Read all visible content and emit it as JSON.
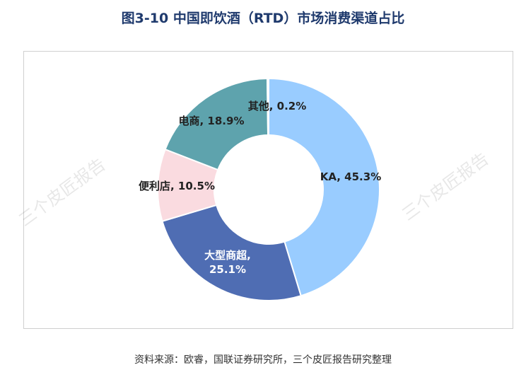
{
  "chart_data": {
    "type": "pie",
    "title": "图3-10  中国即饮酒（RTD）市场消费渠道占比",
    "slices": [
      {
        "name": "KA",
        "value": 45.3,
        "label": "KA, 45.3%",
        "color": "#99ccff"
      },
      {
        "name": "大型商超",
        "value": 25.1,
        "label_lines": [
          "大型商超,",
          "25.1%"
        ],
        "color": "#4f6db3"
      },
      {
        "name": "便利店",
        "value": 10.5,
        "label": "便利店, 10.5%",
        "color": "#fadbe0"
      },
      {
        "name": "电商",
        "value": 18.9,
        "label": "电商, 18.9%",
        "color": "#5ea3ad"
      },
      {
        "name": "其他",
        "value": 0.2,
        "label": "其他, 0.2%",
        "color": "#9ec9d0"
      }
    ],
    "donut": true,
    "legend": "none"
  },
  "source_text": "资料来源：欧睿，国联证券研究所，三个皮匠报告研究整理",
  "watermark_text": "三个皮匠报告"
}
